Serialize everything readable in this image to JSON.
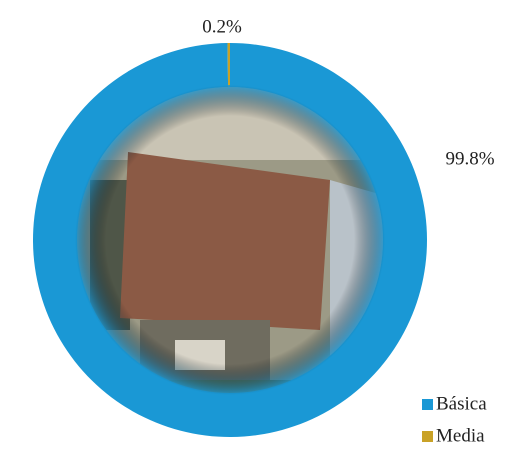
{
  "chart_data": {
    "type": "pie",
    "categories": [
      "Básica",
      "Media"
    ],
    "values": [
      99.8,
      0.2
    ],
    "value_labels": [
      "99.8%",
      "0.2%"
    ],
    "colors": [
      "#1a98d5",
      "#c9a227"
    ],
    "donut": true,
    "legend": "bottom-right"
  }
}
